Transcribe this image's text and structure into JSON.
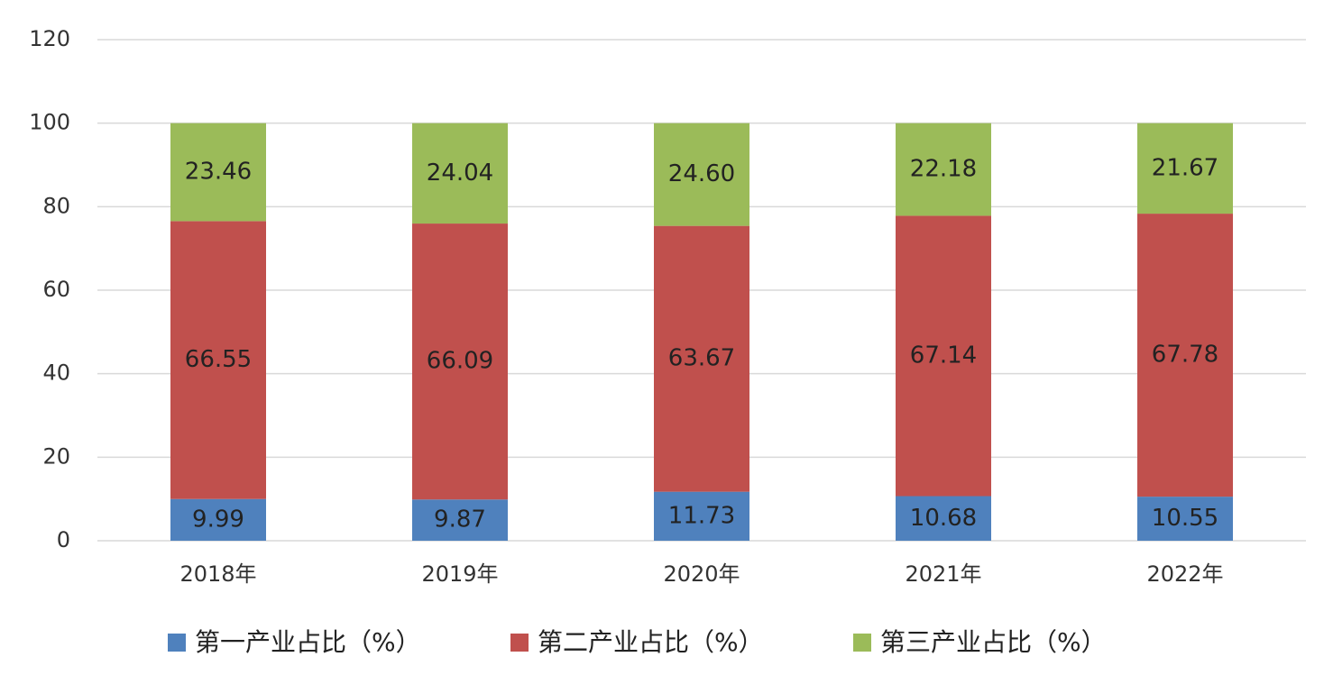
{
  "chart_data": {
    "type": "stacked_bar",
    "categories": [
      "2018年",
      "2019年",
      "2020年",
      "2021年",
      "2022年"
    ],
    "series": [
      {
        "name": "第一产业占比（%）",
        "color": "#4f81bd",
        "values": [
          9.99,
          9.87,
          11.73,
          10.68,
          10.55
        ],
        "value_labels": [
          "9.99",
          "9.87",
          "11.73",
          "10.68",
          "10.55"
        ]
      },
      {
        "name": "第二产业占比（%）",
        "color": "#c0504d",
        "values": [
          66.55,
          66.09,
          63.67,
          67.14,
          67.78
        ],
        "value_labels": [
          "66.55",
          "66.09",
          "63.67",
          "67.14",
          "67.78"
        ]
      },
      {
        "name": "第三产业占比（%）",
        "color": "#9bbb59",
        "values": [
          23.46,
          24.04,
          24.6,
          22.18,
          21.67
        ],
        "value_labels": [
          "23.46",
          "24.04",
          "24.60",
          "22.18",
          "21.67"
        ]
      }
    ],
    "ylim": [
      0,
      120
    ],
    "yticks": [
      0,
      20,
      40,
      60,
      80,
      100,
      120
    ],
    "grid": true,
    "legend": "bottom"
  }
}
